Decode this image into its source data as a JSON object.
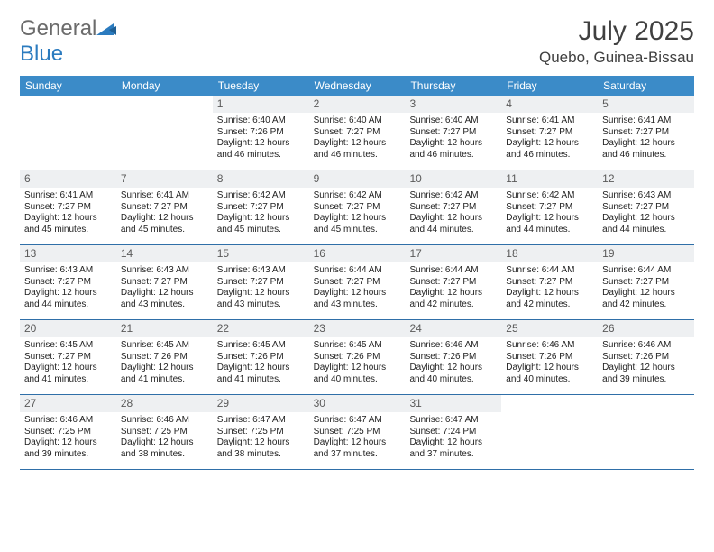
{
  "brand": {
    "name_gray": "General",
    "name_blue": "Blue"
  },
  "title": "July 2025",
  "location": "Quebo, Guinea-Bissau",
  "colors": {
    "header_bg": "#3b8bc8",
    "header_text": "#ffffff",
    "daynum_bg": "#eef0f2",
    "daynum_text": "#5a5a5a",
    "week_border": "#2f6fa8",
    "body_text": "#222222",
    "title_text": "#404040",
    "logo_gray": "#6b6b6b",
    "logo_blue": "#2b7bbf"
  },
  "day_headers": [
    "Sunday",
    "Monday",
    "Tuesday",
    "Wednesday",
    "Thursday",
    "Friday",
    "Saturday"
  ],
  "weeks": [
    [
      {
        "empty": true
      },
      {
        "empty": true
      },
      {
        "n": "1",
        "sunrise": "Sunrise: 6:40 AM",
        "sunset": "Sunset: 7:26 PM",
        "d1": "Daylight: 12 hours",
        "d2": "and 46 minutes."
      },
      {
        "n": "2",
        "sunrise": "Sunrise: 6:40 AM",
        "sunset": "Sunset: 7:27 PM",
        "d1": "Daylight: 12 hours",
        "d2": "and 46 minutes."
      },
      {
        "n": "3",
        "sunrise": "Sunrise: 6:40 AM",
        "sunset": "Sunset: 7:27 PM",
        "d1": "Daylight: 12 hours",
        "d2": "and 46 minutes."
      },
      {
        "n": "4",
        "sunrise": "Sunrise: 6:41 AM",
        "sunset": "Sunset: 7:27 PM",
        "d1": "Daylight: 12 hours",
        "d2": "and 46 minutes."
      },
      {
        "n": "5",
        "sunrise": "Sunrise: 6:41 AM",
        "sunset": "Sunset: 7:27 PM",
        "d1": "Daylight: 12 hours",
        "d2": "and 46 minutes."
      }
    ],
    [
      {
        "n": "6",
        "sunrise": "Sunrise: 6:41 AM",
        "sunset": "Sunset: 7:27 PM",
        "d1": "Daylight: 12 hours",
        "d2": "and 45 minutes."
      },
      {
        "n": "7",
        "sunrise": "Sunrise: 6:41 AM",
        "sunset": "Sunset: 7:27 PM",
        "d1": "Daylight: 12 hours",
        "d2": "and 45 minutes."
      },
      {
        "n": "8",
        "sunrise": "Sunrise: 6:42 AM",
        "sunset": "Sunset: 7:27 PM",
        "d1": "Daylight: 12 hours",
        "d2": "and 45 minutes."
      },
      {
        "n": "9",
        "sunrise": "Sunrise: 6:42 AM",
        "sunset": "Sunset: 7:27 PM",
        "d1": "Daylight: 12 hours",
        "d2": "and 45 minutes."
      },
      {
        "n": "10",
        "sunrise": "Sunrise: 6:42 AM",
        "sunset": "Sunset: 7:27 PM",
        "d1": "Daylight: 12 hours",
        "d2": "and 44 minutes."
      },
      {
        "n": "11",
        "sunrise": "Sunrise: 6:42 AM",
        "sunset": "Sunset: 7:27 PM",
        "d1": "Daylight: 12 hours",
        "d2": "and 44 minutes."
      },
      {
        "n": "12",
        "sunrise": "Sunrise: 6:43 AM",
        "sunset": "Sunset: 7:27 PM",
        "d1": "Daylight: 12 hours",
        "d2": "and 44 minutes."
      }
    ],
    [
      {
        "n": "13",
        "sunrise": "Sunrise: 6:43 AM",
        "sunset": "Sunset: 7:27 PM",
        "d1": "Daylight: 12 hours",
        "d2": "and 44 minutes."
      },
      {
        "n": "14",
        "sunrise": "Sunrise: 6:43 AM",
        "sunset": "Sunset: 7:27 PM",
        "d1": "Daylight: 12 hours",
        "d2": "and 43 minutes."
      },
      {
        "n": "15",
        "sunrise": "Sunrise: 6:43 AM",
        "sunset": "Sunset: 7:27 PM",
        "d1": "Daylight: 12 hours",
        "d2": "and 43 minutes."
      },
      {
        "n": "16",
        "sunrise": "Sunrise: 6:44 AM",
        "sunset": "Sunset: 7:27 PM",
        "d1": "Daylight: 12 hours",
        "d2": "and 43 minutes."
      },
      {
        "n": "17",
        "sunrise": "Sunrise: 6:44 AM",
        "sunset": "Sunset: 7:27 PM",
        "d1": "Daylight: 12 hours",
        "d2": "and 42 minutes."
      },
      {
        "n": "18",
        "sunrise": "Sunrise: 6:44 AM",
        "sunset": "Sunset: 7:27 PM",
        "d1": "Daylight: 12 hours",
        "d2": "and 42 minutes."
      },
      {
        "n": "19",
        "sunrise": "Sunrise: 6:44 AM",
        "sunset": "Sunset: 7:27 PM",
        "d1": "Daylight: 12 hours",
        "d2": "and 42 minutes."
      }
    ],
    [
      {
        "n": "20",
        "sunrise": "Sunrise: 6:45 AM",
        "sunset": "Sunset: 7:27 PM",
        "d1": "Daylight: 12 hours",
        "d2": "and 41 minutes."
      },
      {
        "n": "21",
        "sunrise": "Sunrise: 6:45 AM",
        "sunset": "Sunset: 7:26 PM",
        "d1": "Daylight: 12 hours",
        "d2": "and 41 minutes."
      },
      {
        "n": "22",
        "sunrise": "Sunrise: 6:45 AM",
        "sunset": "Sunset: 7:26 PM",
        "d1": "Daylight: 12 hours",
        "d2": "and 41 minutes."
      },
      {
        "n": "23",
        "sunrise": "Sunrise: 6:45 AM",
        "sunset": "Sunset: 7:26 PM",
        "d1": "Daylight: 12 hours",
        "d2": "and 40 minutes."
      },
      {
        "n": "24",
        "sunrise": "Sunrise: 6:46 AM",
        "sunset": "Sunset: 7:26 PM",
        "d1": "Daylight: 12 hours",
        "d2": "and 40 minutes."
      },
      {
        "n": "25",
        "sunrise": "Sunrise: 6:46 AM",
        "sunset": "Sunset: 7:26 PM",
        "d1": "Daylight: 12 hours",
        "d2": "and 40 minutes."
      },
      {
        "n": "26",
        "sunrise": "Sunrise: 6:46 AM",
        "sunset": "Sunset: 7:26 PM",
        "d1": "Daylight: 12 hours",
        "d2": "and 39 minutes."
      }
    ],
    [
      {
        "n": "27",
        "sunrise": "Sunrise: 6:46 AM",
        "sunset": "Sunset: 7:25 PM",
        "d1": "Daylight: 12 hours",
        "d2": "and 39 minutes."
      },
      {
        "n": "28",
        "sunrise": "Sunrise: 6:46 AM",
        "sunset": "Sunset: 7:25 PM",
        "d1": "Daylight: 12 hours",
        "d2": "and 38 minutes."
      },
      {
        "n": "29",
        "sunrise": "Sunrise: 6:47 AM",
        "sunset": "Sunset: 7:25 PM",
        "d1": "Daylight: 12 hours",
        "d2": "and 38 minutes."
      },
      {
        "n": "30",
        "sunrise": "Sunrise: 6:47 AM",
        "sunset": "Sunset: 7:25 PM",
        "d1": "Daylight: 12 hours",
        "d2": "and 37 minutes."
      },
      {
        "n": "31",
        "sunrise": "Sunrise: 6:47 AM",
        "sunset": "Sunset: 7:24 PM",
        "d1": "Daylight: 12 hours",
        "d2": "and 37 minutes."
      },
      {
        "empty": true
      },
      {
        "empty": true
      }
    ]
  ]
}
